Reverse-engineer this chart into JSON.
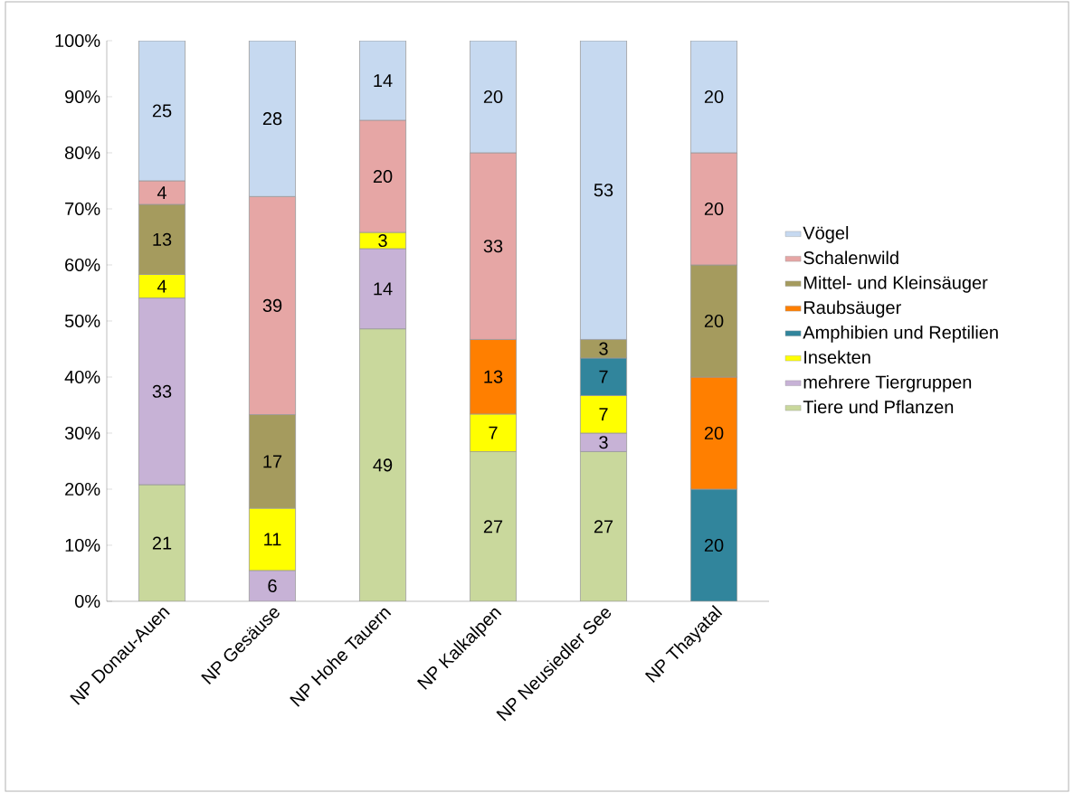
{
  "chart_data": {
    "type": "bar",
    "stacked": true,
    "categories": [
      "NP Donau-Auen",
      "NP Gesäuse",
      "NP Hohe Tauern",
      "NP Kalkalpen",
      "NP Neusiedler See",
      "NP Thayatal"
    ],
    "series": [
      {
        "name": "Tiere und Pflanzen",
        "color": "#c9d89c",
        "values": [
          20.8,
          null,
          48.6,
          26.7,
          26.7,
          null
        ],
        "value_labels": [
          "21",
          null,
          "49",
          "27",
          "27",
          null
        ]
      },
      {
        "name": "mehrere Tiergruppen",
        "color": "#c7b2d6",
        "values": [
          33.3,
          5.5,
          14.3,
          null,
          3.3,
          null
        ],
        "value_labels": [
          "33",
          "6",
          "14",
          null,
          "3",
          null
        ]
      },
      {
        "name": "Insekten",
        "color": "#ffff00",
        "values": [
          4.2,
          11.1,
          2.9,
          6.7,
          6.7,
          null
        ],
        "value_labels": [
          "4",
          "11",
          "3",
          "7",
          "7",
          null
        ]
      },
      {
        "name": "Amphibien und Reptilien",
        "color": "#31859c",
        "values": [
          null,
          null,
          null,
          null,
          6.7,
          20
        ],
        "value_labels": [
          null,
          null,
          null,
          null,
          "7",
          "20"
        ]
      },
      {
        "name": "Raubsäuger",
        "color": "#ff7f00",
        "values": [
          null,
          null,
          null,
          13.3,
          null,
          20
        ],
        "value_labels": [
          null,
          null,
          null,
          "13",
          null,
          "20"
        ]
      },
      {
        "name": "Mittel- und Kleinsäuger",
        "color": "#a59b5e",
        "values": [
          12.5,
          16.7,
          null,
          null,
          3.3,
          20
        ],
        "value_labels": [
          "13",
          "17",
          null,
          null,
          "3",
          "20"
        ]
      },
      {
        "name": "Schalenwild",
        "color": "#e6a6a5",
        "values": [
          4.2,
          38.9,
          20,
          33.3,
          null,
          20
        ],
        "value_labels": [
          "4",
          "39",
          "20",
          "33",
          null,
          "20"
        ]
      },
      {
        "name": "Vögel",
        "color": "#c6d9f0",
        "values": [
          25,
          27.8,
          14.2,
          20,
          53.3,
          20
        ],
        "value_labels": [
          "25",
          "28",
          "14",
          "20",
          "53",
          "20"
        ]
      }
    ],
    "ylim": [
      0,
      100
    ],
    "yticks": [
      {
        "value": 0,
        "label": "0%"
      },
      {
        "value": 10,
        "label": "10%"
      },
      {
        "value": 20,
        "label": "20%"
      },
      {
        "value": 30,
        "label": "30%"
      },
      {
        "value": 40,
        "label": "40%"
      },
      {
        "value": 50,
        "label": "50%"
      },
      {
        "value": 60,
        "label": "60%"
      },
      {
        "value": 70,
        "label": "70%"
      },
      {
        "value": 80,
        "label": "80%"
      },
      {
        "value": 90,
        "label": "90%"
      },
      {
        "value": 100,
        "label": "100%"
      }
    ],
    "grid": false,
    "legend": "right"
  }
}
